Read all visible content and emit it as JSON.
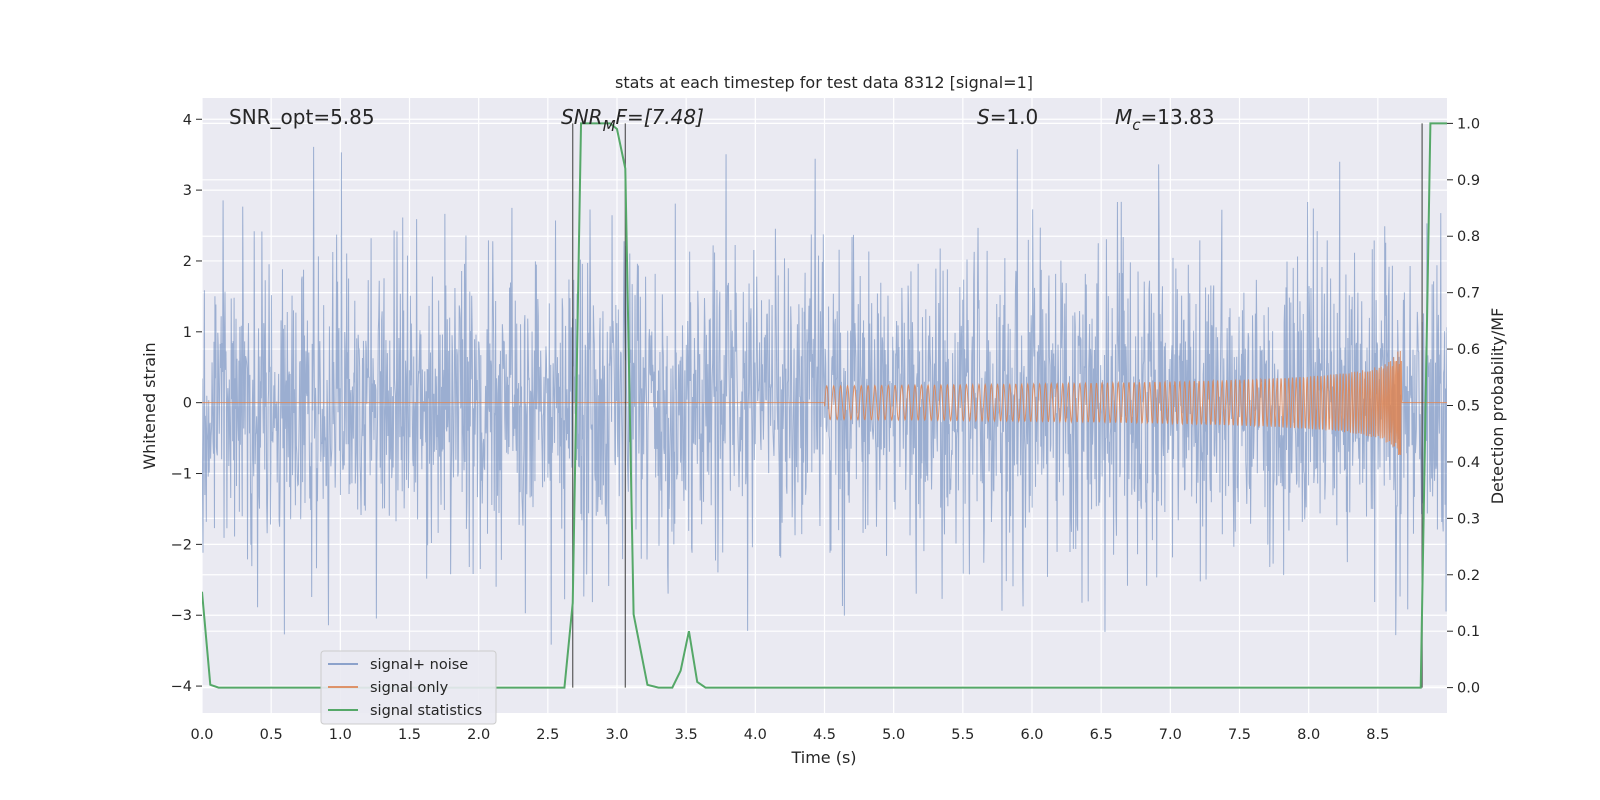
{
  "chart_data": {
    "type": "line",
    "title": "stats at each timestep for test data 8312 [signal=1]",
    "xlabel": "Time (s)",
    "ylabel_left": "Whitened strain",
    "ylabel_right": "Detection probability/MF",
    "xlim": [
      0.0,
      9.0
    ],
    "ylim_left": [
      -4.38,
      4.3
    ],
    "ylim_right": [
      -0.045,
      1.045
    ],
    "grid": true,
    "xticks": [
      "0.0",
      "0.5",
      "1.0",
      "1.5",
      "2.0",
      "2.5",
      "3.0",
      "3.5",
      "4.0",
      "4.5",
      "5.0",
      "5.5",
      "6.0",
      "6.5",
      "7.0",
      "7.5",
      "8.0",
      "8.5"
    ],
    "yticks_left": [
      "−4",
      "−3",
      "−2",
      "−1",
      "0",
      "1",
      "2",
      "3",
      "4"
    ],
    "yticks_right": [
      "0.0",
      "0.1",
      "0.2",
      "0.3",
      "0.4",
      "0.5",
      "0.6",
      "0.7",
      "0.8",
      "0.9",
      "1.0"
    ],
    "annotations": {
      "snr_opt": "SNR_opt=5.85",
      "snr_mf_base": "SNR",
      "snr_mf_sub": "M",
      "snr_mf_rest": "F=[7.48]",
      "s_label": "S",
      "s_value": "=1.0",
      "mc_label": "M",
      "mc_sub": "c",
      "mc_value": "=13.83"
    },
    "legend": {
      "placement": "lower-left",
      "entries": [
        "signal+ noise",
        "signal only",
        "signal statistics"
      ]
    },
    "vertical_markers_s": [
      2.68,
      3.06,
      8.82
    ],
    "series": [
      {
        "name": "signal+ noise",
        "axis": "left",
        "color": "#4c72b0",
        "kind": "noise",
        "sample_rate_hz": 2048,
        "duration_s": 9.0,
        "approx_sigma": 1.0
      },
      {
        "name": "signal only",
        "axis": "left",
        "color": "#dd8452",
        "kind": "chirp",
        "chirp_start_s": 4.5,
        "merger_s": 8.67,
        "peak_amplitude": 0.9
      },
      {
        "name": "signal statistics",
        "axis": "right",
        "color": "#55a868",
        "x": [
          0.0,
          0.06,
          0.12,
          0.5,
          1.0,
          1.5,
          2.0,
          2.5,
          2.62,
          2.68,
          2.74,
          2.78,
          2.95,
          3.0,
          3.06,
          3.12,
          3.22,
          3.3,
          3.4,
          3.46,
          3.52,
          3.58,
          3.64,
          3.7,
          4.0,
          5.0,
          6.0,
          7.0,
          8.0,
          8.5,
          8.81,
          8.88,
          8.94,
          9.0
        ],
        "y": [
          0.17,
          0.005,
          0.0,
          0.0,
          0.0,
          0.0,
          0.0,
          0.0,
          0.0,
          0.15,
          1.0,
          1.0,
          1.0,
          0.99,
          0.92,
          0.13,
          0.005,
          0.0,
          0.0,
          0.03,
          0.1,
          0.01,
          0.0,
          0.0,
          0.0,
          0.0,
          0.0,
          0.0,
          0.0,
          0.0,
          0.0,
          1.0,
          1.0,
          1.0
        ]
      }
    ]
  }
}
